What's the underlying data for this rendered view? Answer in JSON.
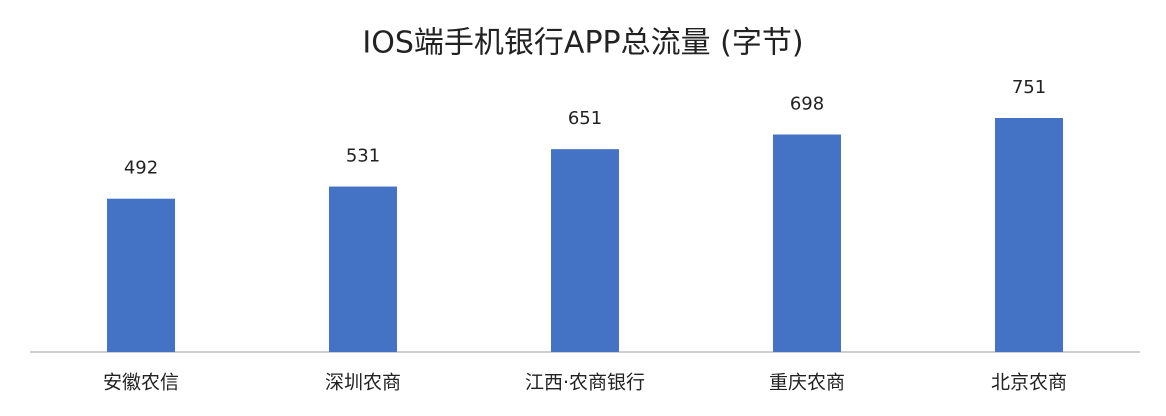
{
  "chart_data": {
    "type": "bar",
    "title": "IOS端手机银行APP总流量 (字节)",
    "categories": [
      "安徽农信",
      "深圳农商",
      "江西·农商银行",
      "重庆农商",
      "北京农商"
    ],
    "values": [
      492,
      531,
      651,
      698,
      751
    ],
    "color": "#4472c4"
  }
}
